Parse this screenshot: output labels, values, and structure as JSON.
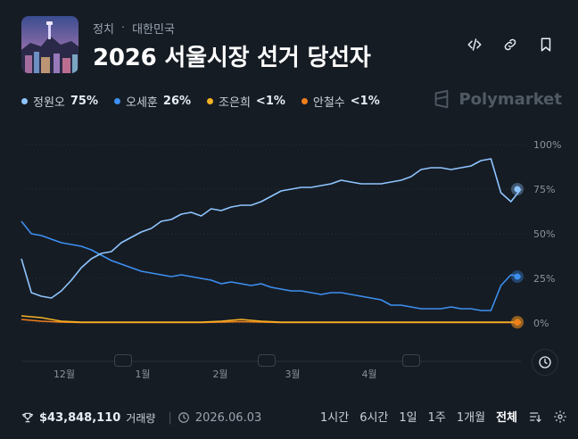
{
  "breadcrumb": {
    "category": "정치",
    "separator": "·",
    "region": "대한민국"
  },
  "market": {
    "title": "2026 서울시장 선거 당선자"
  },
  "brand": {
    "name": "Polymarket"
  },
  "legend": [
    {
      "name": "정원오",
      "value": "75%",
      "color": "#8ec5ff"
    },
    {
      "name": "오세훈",
      "value": "26%",
      "color": "#3d8ff0"
    },
    {
      "name": "조은희",
      "value": "<1%",
      "color": "#f5b324"
    },
    {
      "name": "안철수",
      "value": "<1%",
      "color": "#f07f1a"
    }
  ],
  "icons": {
    "embed": "code-icon",
    "link": "link-icon",
    "bookmark": "bookmark-icon",
    "trophy": "trophy-icon",
    "clock": "clock-icon",
    "settings": "gear-icon",
    "sort": "sort-icon",
    "history": "history-clock-icon"
  },
  "footer": {
    "volume": "$43,848,110",
    "volume_label": "거래량",
    "end_date": "2026.06.03"
  },
  "ranges": [
    "1시간",
    "6시간",
    "1일",
    "1주",
    "1개월",
    "전체"
  ],
  "active_range": "전체",
  "chart_data": {
    "type": "line",
    "x_labels": [
      "12월",
      "1월",
      "2월",
      "3월",
      "4월"
    ],
    "y_ticks": [
      "100%",
      "75%",
      "50%",
      "25%",
      "0%"
    ],
    "ylim": [
      0,
      100
    ],
    "xlim": [
      0,
      100
    ],
    "grid": true,
    "series": [
      {
        "name": "정원오",
        "color": "#8ec5ff",
        "x": [
          0,
          2,
          4,
          6,
          8,
          10,
          12,
          14,
          16,
          18,
          20,
          22,
          24,
          26,
          28,
          30,
          32,
          34,
          36,
          38,
          40,
          42,
          44,
          46,
          48,
          50,
          52,
          54,
          56,
          58,
          60,
          62,
          64,
          66,
          68,
          70,
          72,
          74,
          76,
          78,
          80,
          82,
          84,
          86,
          88,
          90,
          92,
          94,
          96,
          98,
          100
        ],
        "y": [
          36,
          17,
          15,
          14,
          18,
          24,
          31,
          36,
          39,
          40,
          45,
          48,
          51,
          53,
          57,
          58,
          61,
          62,
          60,
          64,
          63,
          65,
          66,
          66,
          68,
          71,
          74,
          75,
          76,
          76,
          77,
          78,
          80,
          79,
          78,
          78,
          78,
          79,
          80,
          82,
          86,
          87,
          87,
          86,
          87,
          88,
          91,
          92,
          73,
          68,
          75
        ]
      },
      {
        "name": "오세훈",
        "color": "#3d8ff0",
        "x": [
          0,
          2,
          4,
          6,
          8,
          10,
          12,
          14,
          16,
          18,
          20,
          22,
          24,
          26,
          28,
          30,
          32,
          34,
          36,
          38,
          40,
          42,
          44,
          46,
          48,
          50,
          52,
          54,
          56,
          58,
          60,
          62,
          64,
          66,
          68,
          70,
          72,
          74,
          76,
          78,
          80,
          82,
          84,
          86,
          88,
          90,
          92,
          94,
          96,
          98,
          100
        ],
        "y": [
          57,
          50,
          49,
          47,
          45,
          44,
          43,
          41,
          38,
          35,
          33,
          31,
          29,
          28,
          27,
          26,
          27,
          26,
          25,
          24,
          22,
          23,
          22,
          21,
          22,
          20,
          19,
          18,
          18,
          17,
          16,
          17,
          17,
          16,
          15,
          14,
          13,
          10,
          10,
          9,
          8,
          8,
          8,
          9,
          8,
          8,
          7,
          7,
          21,
          27,
          26
        ]
      },
      {
        "name": "조은희",
        "color": "#f5b324",
        "x": [
          0,
          4,
          8,
          12,
          16,
          20,
          24,
          28,
          32,
          36,
          40,
          44,
          48,
          52,
          56,
          60,
          64,
          68,
          72,
          76,
          80,
          84,
          88,
          92,
          96,
          100
        ],
        "y": [
          4,
          3,
          1,
          0.5,
          0.5,
          0.5,
          0.5,
          0.5,
          0.5,
          0.5,
          1,
          2,
          1,
          0.5,
          0.5,
          0.5,
          0.5,
          0.5,
          0.5,
          0.5,
          0.5,
          0.5,
          0.5,
          0.5,
          0.5,
          0.5
        ]
      },
      {
        "name": "안철수",
        "color": "#f07f1a",
        "x": [
          0,
          4,
          8,
          12,
          16,
          20,
          24,
          28,
          32,
          36,
          40,
          44,
          48,
          52,
          56,
          60,
          64,
          68,
          72,
          76,
          80,
          84,
          88,
          92,
          96,
          100
        ],
        "y": [
          2,
          1,
          0.5,
          0.3,
          0.3,
          0.3,
          0.3,
          0.3,
          0.3,
          0.3,
          0.5,
          0.8,
          0.5,
          0.3,
          0.3,
          0.3,
          0.3,
          0.3,
          0.3,
          0.3,
          0.3,
          0.3,
          0.3,
          0.3,
          0.3,
          0.3
        ]
      }
    ]
  }
}
